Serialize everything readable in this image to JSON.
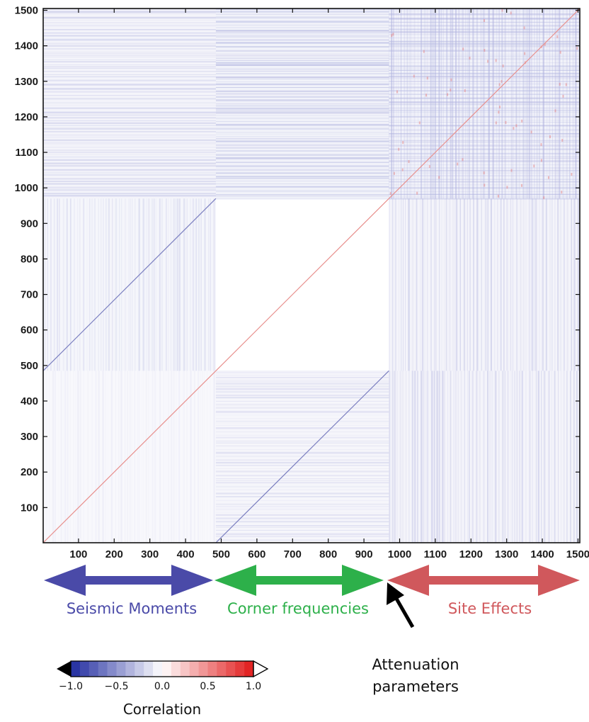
{
  "chart_data": {
    "type": "heatmap",
    "title": "",
    "xlabel": "",
    "ylabel": "",
    "xlim": [
      1,
      1505
    ],
    "ylim": [
      1,
      1505
    ],
    "x_ticks": [
      100,
      200,
      300,
      400,
      500,
      600,
      700,
      800,
      900,
      1000,
      1100,
      1200,
      1300,
      1400,
      1500
    ],
    "y_ticks": [
      100,
      200,
      300,
      400,
      500,
      600,
      700,
      800,
      900,
      1000,
      1100,
      1200,
      1300,
      1400,
      1500
    ],
    "grid": false,
    "matrix_blocks": [
      {
        "x": [
          1,
          485
        ],
        "y": [
          485,
          970
        ],
        "intensity": 0.22,
        "pattern": "vertical"
      },
      {
        "x": [
          485,
          970
        ],
        "y": [
          485,
          970
        ],
        "intensity": 0.0,
        "pattern": "none"
      },
      {
        "x": [
          970,
          1505
        ],
        "y": [
          485,
          970
        ],
        "intensity": 0.3,
        "pattern": "vertical"
      },
      {
        "x": [
          1,
          485
        ],
        "y": [
          970,
          1505
        ],
        "intensity": 0.3,
        "pattern": "horizontal"
      },
      {
        "x": [
          485,
          970
        ],
        "y": [
          970,
          1505
        ],
        "intensity": 0.45,
        "pattern": "horizontal"
      },
      {
        "x": [
          970,
          1505
        ],
        "y": [
          970,
          1505
        ],
        "intensity": 0.4,
        "pattern": "grid"
      },
      {
        "x": [
          1,
          485
        ],
        "y": [
          1,
          485
        ],
        "intensity": 0.08,
        "pattern": "vertical"
      },
      {
        "x": [
          485,
          970
        ],
        "y": [
          1,
          485
        ],
        "intensity": 0.2,
        "pattern": "horizontal"
      },
      {
        "x": [
          970,
          1505
        ],
        "y": [
          1,
          485
        ],
        "intensity": 0.3,
        "pattern": "vertical"
      }
    ],
    "diagonal_lines": [
      {
        "from": [
          1,
          1
        ],
        "to": [
          1505,
          1505
        ],
        "sign": "positive"
      },
      {
        "from": [
          1,
          485
        ],
        "to": [
          485,
          970
        ],
        "sign": "negative"
      },
      {
        "from": [
          485,
          1
        ],
        "to": [
          970,
          485
        ],
        "sign": "negative"
      }
    ],
    "parameter_groups": [
      {
        "label": "Seismic Moments",
        "range": [
          1,
          485
        ],
        "color": "#4a4aa8"
      },
      {
        "label": "Corner frequencies",
        "range": [
          485,
          970
        ],
        "color": "#2db04a"
      },
      {
        "label": "Site Effects",
        "range": [
          970,
          1505
        ],
        "color": "#d0585c"
      }
    ],
    "annotation": {
      "line1": "Attenuation",
      "line2": "parameters",
      "points_to": 970
    },
    "colorbar": {
      "title": "Correlation",
      "range": [
        -1.0,
        1.0
      ],
      "ticks": [
        "−1.0",
        "−0.5",
        "0.0",
        "0.5",
        "1.0"
      ],
      "negative_color": "#1f2a9e",
      "positive_color": "#e01818",
      "steps": 20
    }
  }
}
